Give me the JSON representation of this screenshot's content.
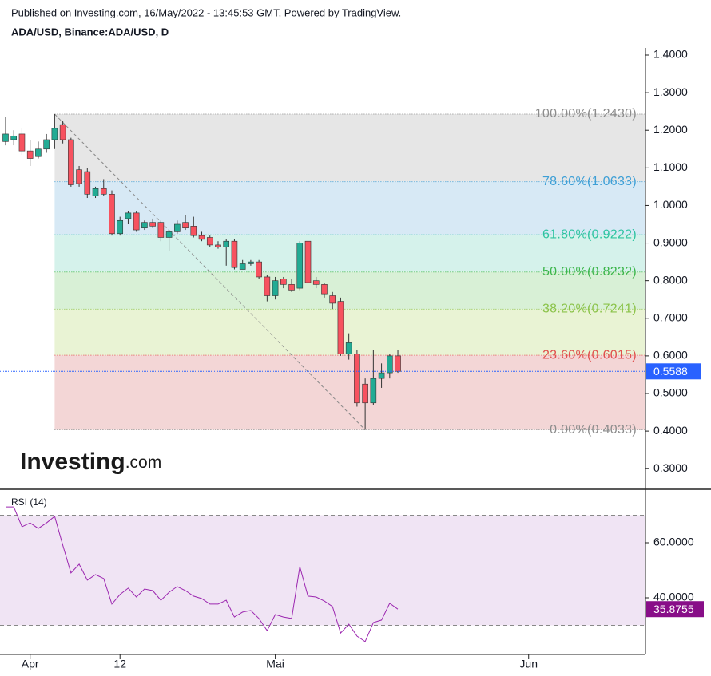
{
  "header": {
    "published": "Published on Investing.com, 16/May/2022 - 13:45:53 GMT, Powered by TradingView.",
    "brand": "Investing",
    "brand_suffix": ".com"
  },
  "chart_data": [
    {
      "type": "candlestick",
      "title": "ADA/USD, Binance:ADA/USD, D",
      "categories": [
        null,
        null,
        null,
        "Apr",
        null,
        null,
        null,
        null,
        null,
        null,
        null,
        null,
        null,
        null,
        "12",
        null,
        null,
        null,
        null,
        null,
        null,
        null,
        null,
        null,
        null,
        null,
        null,
        null,
        null,
        null,
        null,
        null,
        null,
        "Mai",
        null,
        null,
        null,
        null,
        null,
        null,
        null,
        null,
        null,
        null,
        null,
        null,
        null,
        null,
        null,
        null,
        null,
        null,
        null,
        null,
        null,
        null,
        null,
        null,
        null,
        null,
        null,
        null,
        null,
        null,
        "Jun",
        null,
        null,
        null,
        null,
        null,
        null,
        null,
        null,
        null,
        null,
        null,
        null,
        null,
        null
      ],
      "open": [
        1.17,
        1.175,
        1.19,
        1.145,
        1.13,
        1.15,
        1.175,
        1.215,
        1.175,
        1.095,
        1.09,
        1.025,
        1.045,
        1.03,
        0.925,
        0.965,
        0.98,
        0.94,
        0.955,
        0.955,
        0.915,
        0.93,
        0.955,
        0.945,
        0.92,
        0.915,
        0.895,
        0.89,
        0.905,
        0.83,
        0.845,
        0.85,
        0.81,
        0.76,
        0.805,
        0.79,
        0.78,
        0.905,
        0.8,
        0.79,
        0.76,
        0.745,
        0.605,
        0.605,
        0.525,
        0.475,
        0.54,
        0.555,
        0.6,
        null,
        null,
        null,
        null,
        null,
        null,
        null,
        null,
        null,
        null,
        null,
        null,
        null,
        null,
        null,
        null,
        null,
        null,
        null,
        null,
        null,
        null,
        null,
        null,
        null,
        null,
        null,
        null,
        null,
        null
      ],
      "high": [
        1.235,
        1.2,
        1.205,
        1.175,
        1.17,
        1.19,
        1.243,
        1.225,
        1.18,
        1.105,
        1.1,
        1.05,
        1.07,
        1.04,
        0.97,
        0.985,
        0.985,
        0.96,
        0.965,
        0.96,
        0.935,
        0.96,
        0.975,
        0.97,
        0.93,
        0.92,
        0.905,
        0.91,
        0.91,
        0.855,
        0.855,
        0.855,
        0.815,
        0.81,
        0.81,
        0.805,
        0.905,
        0.905,
        0.81,
        0.795,
        0.77,
        0.755,
        0.66,
        0.615,
        0.54,
        0.615,
        0.58,
        0.605,
        0.615,
        null,
        null,
        null,
        null,
        null,
        null,
        null,
        null,
        null,
        null,
        null,
        null,
        null,
        null,
        null,
        null,
        null,
        null,
        null,
        null,
        null,
        null,
        null,
        null,
        null,
        null,
        null,
        null,
        null,
        null
      ],
      "low": [
        1.16,
        1.16,
        1.135,
        1.105,
        1.125,
        1.14,
        1.15,
        1.165,
        1.05,
        1.05,
        1.02,
        1.02,
        1.025,
        0.92,
        0.92,
        0.95,
        0.93,
        0.935,
        0.94,
        0.905,
        0.88,
        0.925,
        0.935,
        0.915,
        0.905,
        0.89,
        0.885,
        0.84,
        0.83,
        0.83,
        0.84,
        0.805,
        0.745,
        0.75,
        0.78,
        0.77,
        0.775,
        0.79,
        0.78,
        0.755,
        0.725,
        0.6,
        0.59,
        0.465,
        0.4033,
        0.47,
        0.515,
        0.54,
        0.555,
        null,
        null,
        null,
        null,
        null,
        null,
        null,
        null,
        null,
        null,
        null,
        null,
        null,
        null,
        null,
        null,
        null,
        null,
        null,
        null,
        null,
        null,
        null,
        null,
        null,
        null,
        null,
        null,
        null,
        null
      ],
      "close": [
        1.19,
        1.185,
        1.145,
        1.125,
        1.15,
        1.175,
        1.205,
        1.175,
        1.055,
        1.058,
        1.03,
        1.045,
        1.03,
        0.925,
        0.96,
        0.98,
        0.935,
        0.955,
        0.945,
        0.915,
        0.93,
        0.95,
        0.94,
        0.92,
        0.91,
        0.895,
        0.89,
        0.905,
        0.835,
        0.845,
        0.85,
        0.81,
        0.76,
        0.8,
        0.79,
        0.775,
        0.9,
        0.795,
        0.79,
        0.765,
        0.74,
        0.605,
        0.635,
        0.475,
        0.475,
        0.54,
        0.555,
        0.6,
        0.5588,
        null,
        null,
        null,
        null,
        null,
        null,
        null,
        null,
        null,
        null,
        null,
        null,
        null,
        null,
        null,
        null,
        null,
        null,
        null,
        null,
        null,
        null,
        null,
        null,
        null,
        null,
        null,
        null,
        null,
        null
      ],
      "up_color": "#22ab94",
      "down_color": "#f7525f",
      "wick_color": "#333333",
      "ylim": [
        0.2474,
        1.4191
      ],
      "yticks": [
        {
          "value": 0.3,
          "label": "0.3000"
        },
        {
          "value": 0.4,
          "label": "0.4000"
        },
        {
          "value": 0.5,
          "label": "0.5000"
        },
        {
          "value": 0.6,
          "label": "0.6000"
        },
        {
          "value": 0.7,
          "label": "0.7000"
        },
        {
          "value": 0.8,
          "label": "0.8000"
        },
        {
          "value": 0.9,
          "label": "0.9000"
        },
        {
          "value": 1.0,
          "label": "1.0000"
        },
        {
          "value": 1.1,
          "label": "1.1000"
        },
        {
          "value": 1.2,
          "label": "1.2000"
        },
        {
          "value": 1.3,
          "label": "1.3000"
        },
        {
          "value": 1.4,
          "label": "1.4000"
        }
      ],
      "fib_levels": [
        {
          "value": 1.243,
          "label": "100.00%(1.2430)",
          "color": "#8c8c8c",
          "fill": "#e6e6e6"
        },
        {
          "value": 1.0633,
          "label": "78.60%(1.0633)",
          "color": "#3d9fd6",
          "fill": "#d7e9f5"
        },
        {
          "value": 0.9222,
          "label": "61.80%(0.9222)",
          "color": "#2ec4a0",
          "fill": "#d5f2eb"
        },
        {
          "value": 0.8232,
          "label": "50.00%(0.8232)",
          "color": "#3bb54a",
          "fill": "#d8f0d6"
        },
        {
          "value": 0.7241,
          "label": "38.20%(0.7241)",
          "color": "#8bc34a",
          "fill": "#e9f3d4"
        },
        {
          "value": 0.6015,
          "label": "23.60%(0.6015)",
          "color": "#e0504d",
          "fill": "#f3d6d6"
        },
        {
          "value": 0.4033,
          "label": "0.00%(0.4033)",
          "color": "#8c8c8c"
        }
      ],
      "last_price": 0.5588,
      "last_price_color": "#2962ff"
    },
    {
      "type": "line",
      "title": "RSI (14)",
      "values": [
        73,
        73,
        65.8,
        67.2,
        65.2,
        67.2,
        69.6,
        59.1,
        49,
        52.2,
        46.4,
        48.4,
        47,
        37.7,
        41.2,
        43.5,
        40.3,
        43.2,
        42.6,
        39.1,
        42,
        44.1,
        42.6,
        40.6,
        39.7,
        37.7,
        37.7,
        39.1,
        33,
        34.8,
        35.4,
        32.5,
        28.1,
        33.9,
        33,
        32.5,
        51.3,
        40.6,
        40.3,
        38.8,
        36.8,
        27.2,
        30.4,
        26.1,
        24.1,
        31,
        31.9,
        38,
        35.8755,
        null,
        null,
        null,
        null,
        null,
        null,
        null,
        null,
        null,
        null,
        null,
        null,
        null,
        null,
        null,
        null,
        null,
        null,
        null,
        null,
        null,
        null,
        null,
        null,
        null,
        null,
        null,
        null,
        null,
        null
      ],
      "color": "#9c27b0",
      "band_color": "#f0e4f4",
      "bands": [
        70,
        30
      ],
      "ylim": [
        19.42,
        79.13
      ],
      "yticks": [
        {
          "value": 40,
          "label": "40.0000"
        },
        {
          "value": 60,
          "label": "60.0000"
        }
      ],
      "last_value_color": "#880e88"
    }
  ]
}
